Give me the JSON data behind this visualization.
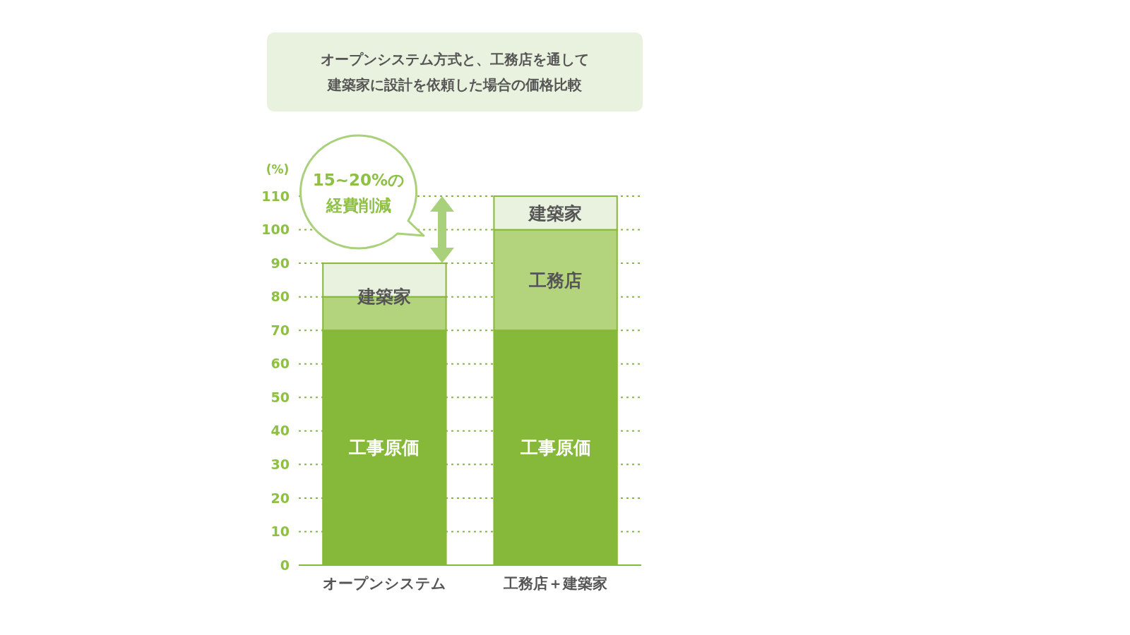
{
  "chart_data": {
    "type": "bar",
    "title": "オープンシステム方式と、工務店を通して建築家に設計を依頼した場合の価格比較",
    "ylabel": "(%)",
    "categories": [
      "オープンシステム",
      "工務店＋建築家"
    ],
    "stacked": true,
    "series": [
      {
        "color": "#86b83a",
        "values": [
          70,
          70
        ]
      },
      {
        "color": "#b3d47d",
        "values": [
          10,
          30
        ]
      },
      {
        "color": "#e9f2de",
        "values": [
          10,
          10
        ]
      }
    ],
    "ylim": [
      0,
      110
    ],
    "yticks": [
      0,
      10,
      20,
      30,
      40,
      50,
      60,
      70,
      80,
      90,
      100,
      110
    ],
    "grid": "y",
    "annotations": [
      "工事原価",
      "建築家",
      "工事原価",
      "工務店",
      "建築家",
      "15~20%の経費削減"
    ]
  }
}
